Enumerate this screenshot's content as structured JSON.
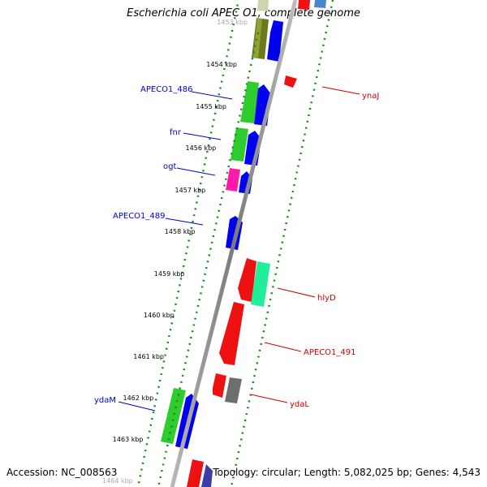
{
  "title": "Escherichia coli APEC O1, complete genome",
  "footer": {
    "accession": "Accession: NC_008563",
    "summary": "Topology: circular; Length: 5,082,025 bp; Genes: 4,543"
  },
  "ticks": [
    {
      "label": "1453 kbp"
    },
    {
      "label": "1454 kbp"
    },
    {
      "label": "1455 kbp"
    },
    {
      "label": "1456 kbp"
    },
    {
      "label": "1457 kbp"
    },
    {
      "label": "1458 kbp"
    },
    {
      "label": "1459 kbp"
    },
    {
      "label": "1460 kbp"
    },
    {
      "label": "1461 kbp"
    },
    {
      "label": "1462 kbp"
    },
    {
      "label": "1463 kbp"
    },
    {
      "label": "1464 kbp"
    }
  ],
  "left_labels": [
    "APECO1_486",
    "fnr",
    "ogt",
    "APECO1_489",
    "ydaM"
  ],
  "right_labels": [
    "ynaJ",
    "hlyD",
    "APECO1_491",
    "ydaL"
  ],
  "colors": {
    "left_label": "#0000cc",
    "right_label": "#cc0000",
    "dots": "#1a8a1a",
    "backbone": "#8c8c8c",
    "tick_text": "#000000"
  }
}
